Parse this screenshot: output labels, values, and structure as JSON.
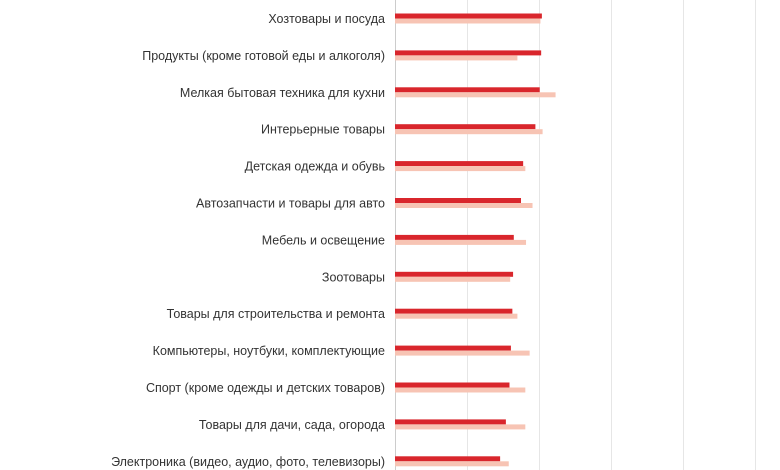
{
  "chart_data": {
    "type": "bar",
    "orientation": "horizontal",
    "categories": [
      "Хозтовары и посуда",
      "Продукты (кроме готовой еды и алкоголя)",
      "Мелкая бытовая техника для кухни",
      "Интерьерные товары",
      "Детская одежда и обувь",
      "Автозапчасти и товары для авто",
      "Мебель и освещение",
      "Зоотовары",
      "Товары для строительства и ремонта",
      "Компьютеры, ноутбуки, комплектующие",
      "Спорт (кроме одежды и детских товаров)",
      "Товары для дачи, сада, огорода",
      "Электроника (видео, аудио, фото, телевизоры)"
    ],
    "series": [
      {
        "values": [
          20.4,
          20.3,
          20.1,
          19.5,
          17.8,
          17.5,
          16.5,
          16.4,
          16.3,
          16.1,
          15.9,
          15.4,
          14.6
        ],
        "color": "#d9262c"
      },
      {
        "values": [
          20.2,
          17.0,
          22.3,
          20.5,
          18.1,
          19.1,
          18.2,
          16.0,
          17.0,
          18.7,
          18.1,
          18.1,
          15.8
        ],
        "color": "#f7c4b4"
      }
    ],
    "xlim": [
      0,
      50
    ],
    "grid": true,
    "legend": "none"
  }
}
